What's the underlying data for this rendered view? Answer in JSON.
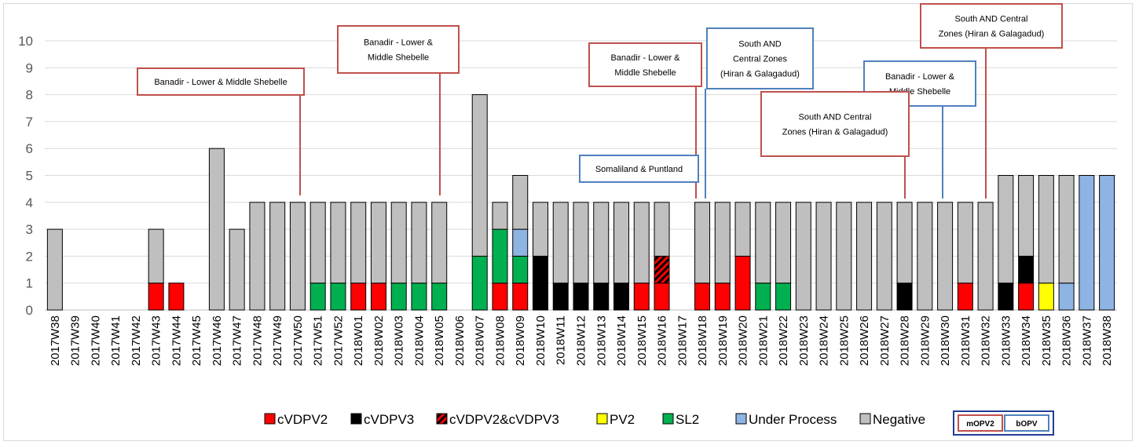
{
  "chart_data": {
    "type": "bar",
    "stacked": true,
    "ylim": [
      0,
      10
    ],
    "yticks": [
      0,
      1,
      2,
      3,
      4,
      5,
      6,
      7,
      8,
      9,
      10
    ],
    "grid": true,
    "legend_position": "bottom",
    "categories": [
      "2017W38",
      "2017W39",
      "2017W40",
      "2017W41",
      "2017W42",
      "2017W43",
      "2017W44",
      "2017W45",
      "2017W46",
      "2017W47",
      "2017W48",
      "2017W49",
      "2017W50",
      "2017W51",
      "2017W52",
      "2018W01",
      "2018W02",
      "2018W03",
      "2018W04",
      "2018W05",
      "2018W06",
      "2018W07",
      "2018W08",
      "2018W09",
      "2018W10",
      "2018W11",
      "2018W12",
      "2018W13",
      "2018W14",
      "2018W15",
      "2018W16",
      "2018W17",
      "2018W18",
      "2018W19",
      "2018W20",
      "2018W21",
      "2018W22",
      "2018W23",
      "2018W24",
      "2018W25",
      "2018W26",
      "2018W27",
      "2018W28",
      "2018W29",
      "2018W30",
      "2018W31",
      "2018W32",
      "2018W33",
      "2018W34",
      "2018W35",
      "2018W36",
      "2018W37",
      "2018W38"
    ],
    "series": [
      {
        "name": "cVDPV2",
        "color": "#ff0000",
        "values": [
          0,
          0,
          0,
          0,
          0,
          1,
          1,
          0,
          0,
          0,
          0,
          0,
          0,
          0,
          0,
          1,
          1,
          0,
          0,
          0,
          0,
          0,
          1,
          1,
          0,
          0,
          0,
          0,
          0,
          1,
          1,
          0,
          1,
          1,
          2,
          0,
          0,
          0,
          0,
          0,
          0,
          0,
          0,
          0,
          0,
          1,
          0,
          0,
          1,
          0,
          0,
          0,
          0
        ]
      },
      {
        "name": "cVDPV3",
        "color": "#000000",
        "values": [
          0,
          0,
          0,
          0,
          0,
          0,
          0,
          0,
          0,
          0,
          0,
          0,
          0,
          0,
          0,
          0,
          0,
          0,
          0,
          0,
          0,
          0,
          0,
          0,
          2,
          1,
          1,
          1,
          1,
          0,
          0,
          0,
          0,
          0,
          0,
          0,
          0,
          0,
          0,
          0,
          0,
          0,
          1,
          0,
          0,
          0,
          0,
          1,
          1,
          0,
          0,
          0,
          0
        ]
      },
      {
        "name": "cVDPV2&cVDPV3",
        "color": "#ff0000",
        "pattern": "hatched",
        "values": [
          0,
          0,
          0,
          0,
          0,
          0,
          0,
          0,
          0,
          0,
          0,
          0,
          0,
          0,
          0,
          0,
          0,
          0,
          0,
          0,
          0,
          0,
          0,
          0,
          0,
          0,
          0,
          0,
          0,
          0,
          1,
          0,
          0,
          0,
          0,
          0,
          0,
          0,
          0,
          0,
          0,
          0,
          0,
          0,
          0,
          0,
          0,
          0,
          0,
          0,
          0,
          0,
          0
        ]
      },
      {
        "name": "PV2",
        "color": "#ffff00",
        "values": [
          0,
          0,
          0,
          0,
          0,
          0,
          0,
          0,
          0,
          0,
          0,
          0,
          0,
          0,
          0,
          0,
          0,
          0,
          0,
          0,
          0,
          0,
          0,
          0,
          0,
          0,
          0,
          0,
          0,
          0,
          0,
          0,
          0,
          0,
          0,
          0,
          0,
          0,
          0,
          0,
          0,
          0,
          0,
          0,
          0,
          0,
          0,
          0,
          0,
          1,
          0,
          0,
          0
        ]
      },
      {
        "name": "SL2",
        "color": "#00b050",
        "values": [
          0,
          0,
          0,
          0,
          0,
          0,
          0,
          0,
          0,
          0,
          0,
          0,
          0,
          1,
          1,
          0,
          0,
          1,
          1,
          1,
          0,
          2,
          2,
          1,
          0,
          0,
          0,
          0,
          0,
          0,
          0,
          0,
          0,
          0,
          0,
          1,
          1,
          0,
          0,
          0,
          0,
          0,
          0,
          0,
          0,
          0,
          0,
          0,
          0,
          0,
          0,
          0,
          0
        ]
      },
      {
        "name": "Under Process",
        "color": "#8eb4e3",
        "values": [
          0,
          0,
          0,
          0,
          0,
          0,
          0,
          0,
          0,
          0,
          0,
          0,
          0,
          0,
          0,
          0,
          0,
          0,
          0,
          0,
          0,
          0,
          0,
          1,
          0,
          0,
          0,
          0,
          0,
          0,
          0,
          0,
          0,
          0,
          0,
          0,
          0,
          0,
          0,
          0,
          0,
          0,
          0,
          0,
          0,
          0,
          0,
          0,
          0,
          0,
          1,
          5,
          5
        ]
      },
      {
        "name": "Negative",
        "color": "#bfbfbf",
        "values": [
          3,
          0,
          0,
          0,
          0,
          2,
          0,
          0,
          6,
          3,
          4,
          4,
          4,
          3,
          3,
          3,
          3,
          3,
          3,
          3,
          0,
          6,
          1,
          2,
          2,
          3,
          3,
          3,
          3,
          3,
          2,
          0,
          3,
          3,
          2,
          3,
          3,
          4,
          4,
          4,
          4,
          4,
          3,
          4,
          4,
          3,
          4,
          4,
          3,
          4,
          4,
          0,
          0
        ]
      }
    ],
    "annotations": [
      {
        "text": "Banadir -  Lower & Middle Shebelle",
        "campaign": "mOPV2",
        "category": "2017W50"
      },
      {
        "text": "Banadir -  Lower & Middle Shebelle",
        "campaign": "mOPV2",
        "category": "2018W05"
      },
      {
        "text": "Banadir -  Lower & Middle Shebelle",
        "campaign": "mOPV2",
        "category": "2018W18"
      },
      {
        "text": "Somaliland  & Puntland",
        "campaign": "bOPV",
        "category": "2018W18"
      },
      {
        "text": "South AND Central Zones (Hiran & Galagadud)",
        "campaign": "bOPV",
        "category": "2018W18"
      },
      {
        "text": "Banadir -  Lower & Middle Shebelle",
        "campaign": "bOPV",
        "category": "2018W30"
      },
      {
        "text": "South AND Central Zones (Hiran & Galagadud)",
        "campaign": "mOPV2",
        "category": "2018W28"
      },
      {
        "text": "South AND Central Zones (Hiran & Galagadud)",
        "campaign": "mOPV2",
        "category": "2018W32"
      }
    ],
    "campaign_key": [
      {
        "label": "mOPV2",
        "color": "#c0504d"
      },
      {
        "label": "bOPV",
        "color": "#4f81bd"
      }
    ]
  }
}
